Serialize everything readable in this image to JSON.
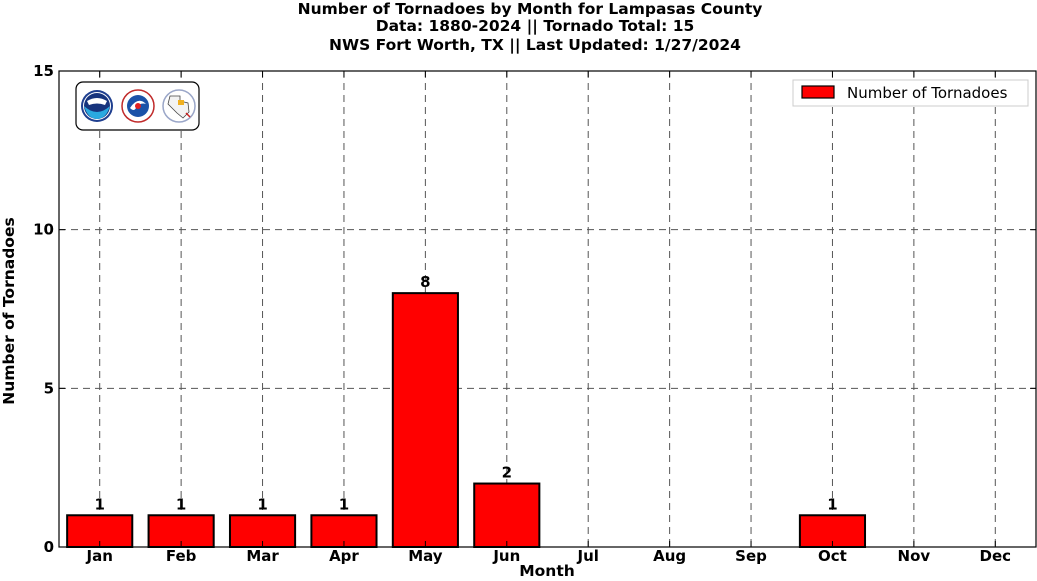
{
  "title_lines": [
    "Number of Tornadoes by Month for Lampasas County",
    "Data: 1880-2024 || Tornado Total: 15",
    "NWS Fort Worth, TX || Last Updated: 1/27/2024"
  ],
  "logos": [
    "noaa-logo",
    "national-weather-service-logo",
    "nws-fort-worth-logo"
  ],
  "colors": {
    "bar_fill": "#ff0000",
    "bar_edge": "#000000",
    "grid": "#555555"
  },
  "chart_data": {
    "type": "bar",
    "categories": [
      "Jan",
      "Feb",
      "Mar",
      "Apr",
      "May",
      "Jun",
      "Jul",
      "Aug",
      "Sep",
      "Oct",
      "Nov",
      "Dec"
    ],
    "values": [
      1,
      1,
      1,
      1,
      8,
      2,
      0,
      0,
      0,
      1,
      0,
      0
    ],
    "data_labels": [
      "1",
      "1",
      "1",
      "1",
      "8",
      "2",
      "",
      "",
      "",
      "1",
      "",
      ""
    ],
    "xlabel": "Month",
    "ylabel": "Number of Tornadoes",
    "ylim": [
      0,
      15
    ],
    "yticks": [
      0,
      5,
      10,
      15
    ],
    "grid": true,
    "legend": {
      "label": "Number of Tornadoes",
      "placement": "top-right"
    }
  }
}
